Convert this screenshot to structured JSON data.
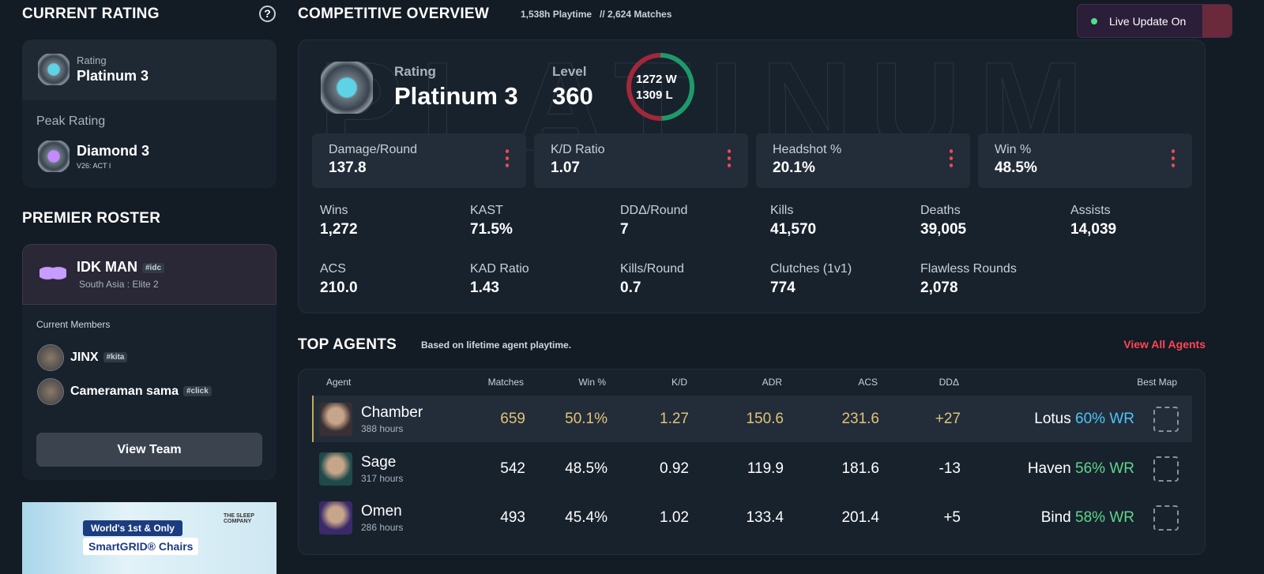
{
  "sidebar": {
    "current_rating": {
      "title": "CURRENT RATING",
      "help": "?",
      "rating_label": "Rating",
      "rating": "Platinum 3",
      "peak_label": "Peak Rating",
      "peak": "Diamond 3",
      "peak_act": "V26: ACT I"
    },
    "roster": {
      "title": "PREMIER ROSTER",
      "team": "IDK MAN",
      "team_tag": "#idc",
      "region": "South Asia : Elite 2",
      "members_label": "Current Members",
      "members": [
        {
          "name": "JINX",
          "tag": "#kita"
        },
        {
          "name": "Cameraman sama",
          "tag": "#click"
        }
      ],
      "button": "View Team"
    },
    "ad": {
      "brand": "THE SLEEP COMPANY",
      "line1": "World's 1st & Only",
      "line2": "SmartGRID® Chairs"
    }
  },
  "overview": {
    "title": "COMPETITIVE OVERVIEW",
    "playtime": "1,538h Playtime",
    "matches": "// 2,624 Matches",
    "live": "Live Update On",
    "banner": "PLATINUM",
    "rating_label": "Rating",
    "rating": "Platinum 3",
    "level_label": "Level",
    "level": "360",
    "record": [
      {
        "count": 1272,
        "label": "W"
      },
      {
        "count": 1309,
        "label": "L"
      }
    ],
    "cards": [
      {
        "label": "Damage/Round",
        "value": "137.8"
      },
      {
        "label": "K/D Ratio",
        "value": "1.07"
      },
      {
        "label": "Headshot %",
        "value": "20.1%"
      },
      {
        "label": "Win %",
        "value": "48.5%"
      }
    ],
    "stats": [
      {
        "label": "Wins",
        "value": "1,272"
      },
      {
        "label": "KAST",
        "value": "71.5%"
      },
      {
        "label": "DDΔ/Round",
        "value": "7"
      },
      {
        "label": "Kills",
        "value": "41,570"
      },
      {
        "label": "Deaths",
        "value": "39,005"
      },
      {
        "label": "Assists",
        "value": "14,039"
      },
      {
        "label": "ACS",
        "value": "210.0"
      },
      {
        "label": "KAD Ratio",
        "value": "1.43"
      },
      {
        "label": "Kills/Round",
        "value": "0.7"
      },
      {
        "label": "Clutches (1v1)",
        "value": "774"
      },
      {
        "label": "Flawless Rounds",
        "value": "2,078"
      }
    ]
  },
  "top_agents": {
    "title": "TOP AGENTS",
    "subtitle": "Based on lifetime agent playtime.",
    "link": "View All Agents",
    "columns": [
      "Agent",
      "Matches",
      "Win %",
      "K/D",
      "ADR",
      "ACS",
      "DDΔ",
      "Best Map"
    ],
    "rows": [
      {
        "agent": "Chamber",
        "hours": "388 hours",
        "cells": [
          "659",
          "50.1%",
          "1.27",
          "150.6",
          "231.6",
          "+27"
        ],
        "map": "Lotus",
        "map_wr": "60% WR"
      },
      {
        "agent": "Sage",
        "hours": "317 hours",
        "cells": [
          "542",
          "48.5%",
          "0.92",
          "119.9",
          "181.6",
          "-13"
        ],
        "map": "Haven",
        "map_wr": "56% WR"
      },
      {
        "agent": "Omen",
        "hours": "286 hours",
        "cells": [
          "493",
          "45.4%",
          "1.02",
          "133.4",
          "201.4",
          "+5"
        ],
        "map": "Bind",
        "map_wr": "58% WR"
      }
    ]
  }
}
